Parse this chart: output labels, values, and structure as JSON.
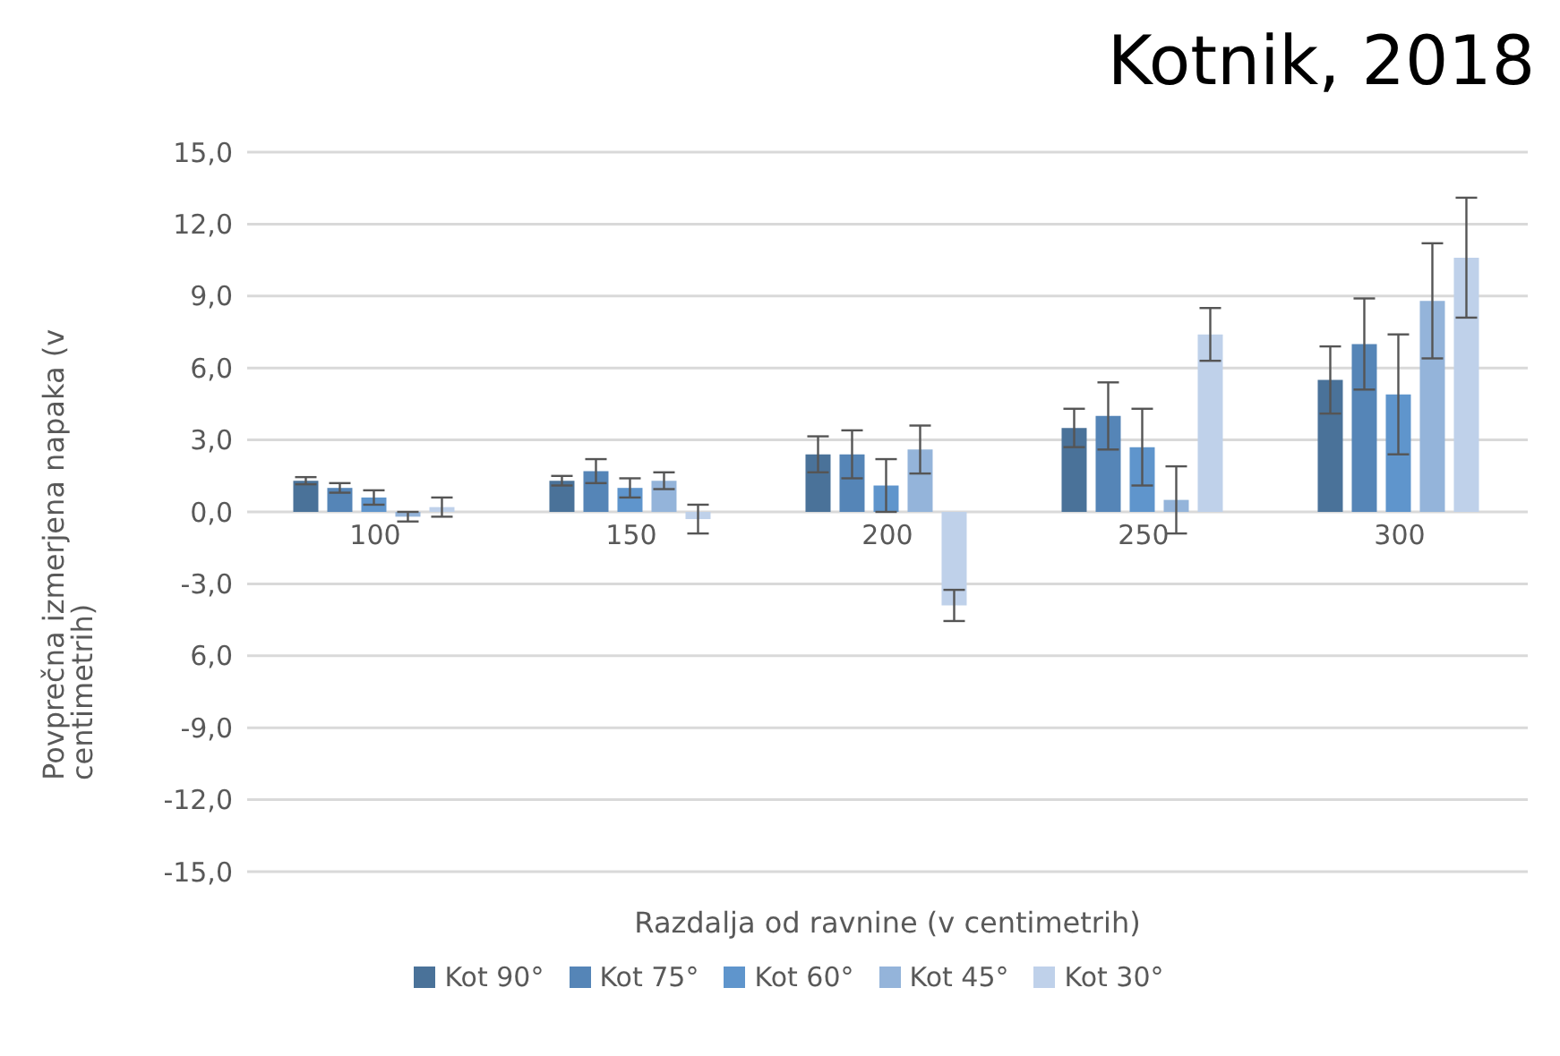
{
  "chart_data": {
    "type": "bar",
    "ylabel": "Povprečna izmerjena napaka (v centimetrih)",
    "xlabel": "Razdalja od ravnine (v centimetrih)",
    "annotations": [
      "Kotnik, 2018"
    ],
    "categories": [
      "100",
      "150",
      "200",
      "250",
      "300"
    ],
    "series": [
      {
        "name": "Kot 90°",
        "color": "#4a7299",
        "values": [
          1.3,
          1.3,
          2.4,
          3.5,
          5.5
        ],
        "errors": [
          0.15,
          0.2,
          0.75,
          0.8,
          1.4
        ]
      },
      {
        "name": "Kot 75°",
        "color": "#5585b7",
        "values": [
          1.0,
          1.7,
          2.4,
          4.0,
          7.0
        ],
        "errors": [
          0.2,
          0.5,
          1.0,
          1.4,
          1.9
        ]
      },
      {
        "name": "Kot 60°",
        "color": "#5f95cc",
        "values": [
          0.6,
          1.0,
          1.1,
          2.7,
          4.9
        ],
        "errors": [
          0.3,
          0.4,
          1.1,
          1.6,
          2.5
        ]
      },
      {
        "name": "Kot 45°",
        "color": "#94b4da",
        "values": [
          -0.2,
          1.3,
          2.6,
          0.5,
          8.8
        ],
        "errors": [
          0.2,
          0.35,
          1.0,
          1.4,
          2.4
        ]
      },
      {
        "name": "Kot 30°",
        "color": "#bfd1ea",
        "values": [
          0.2,
          -0.3,
          -3.9,
          7.4,
          10.6
        ],
        "errors": [
          0.4,
          0.6,
          0.65,
          1.1,
          2.5
        ]
      }
    ],
    "ylim": [
      -15,
      15
    ],
    "yticks": [
      {
        "value": -15,
        "label": "-15,0"
      },
      {
        "value": -12,
        "label": "-12,0"
      },
      {
        "value": -9,
        "label": "-9,0"
      },
      {
        "value": -6,
        "label": "6,0"
      },
      {
        "value": -3,
        "label": "-3,0"
      },
      {
        "value": 0,
        "label": "0,0"
      },
      {
        "value": 3,
        "label": "3,0"
      },
      {
        "value": 6,
        "label": "6,0"
      },
      {
        "value": 9,
        "label": "9,0"
      },
      {
        "value": 12,
        "label": "12,0"
      },
      {
        "value": 15,
        "label": "15,0"
      }
    ],
    "grid": "y",
    "legend": "bottom"
  }
}
